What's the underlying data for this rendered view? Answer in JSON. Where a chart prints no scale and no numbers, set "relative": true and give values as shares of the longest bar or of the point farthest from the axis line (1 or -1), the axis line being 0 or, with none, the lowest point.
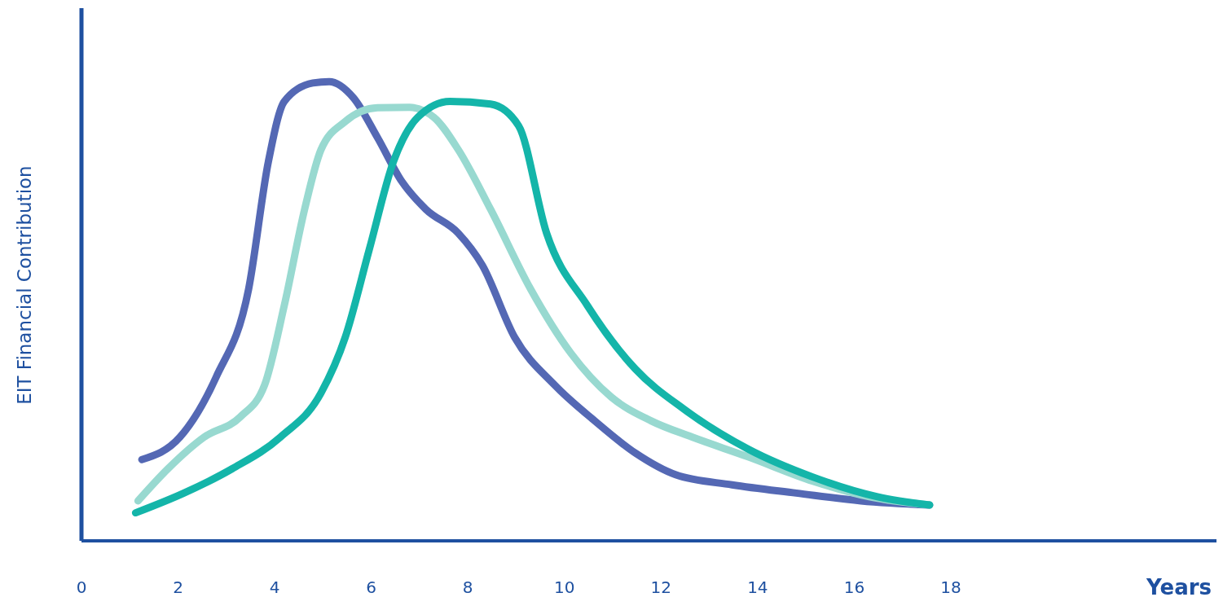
{
  "chart_data": {
    "type": "line",
    "relative": true,
    "xlabel": "Years",
    "ylabel": "EIT Financial Contribution",
    "xlim": [
      0,
      23.5
    ],
    "xticks": [
      0,
      2,
      4,
      6,
      8,
      10,
      12,
      14,
      16,
      18
    ],
    "grid": false,
    "legend": false,
    "marker": "none",
    "line_style": "solid",
    "series": [
      {
        "color": "#5468b4",
        "x": [
          1.25,
          2.04,
          2.79,
          3.46,
          3.87,
          4.2,
          4.79,
          5.13,
          5.63,
          6.13,
          6.63,
          7.13,
          7.8,
          8.3,
          8.97,
          9.8,
          10.63,
          11.47,
          12.3,
          13.47,
          14.8,
          16.14,
          17.56
        ],
        "values": [
          0.177,
          0.226,
          0.357,
          0.548,
          0.826,
          0.957,
          0.997,
          1.0,
          0.965,
          0.878,
          0.783,
          0.722,
          0.67,
          0.6,
          0.443,
          0.339,
          0.261,
          0.191,
          0.144,
          0.122,
          0.104,
          0.087,
          0.078
        ]
      },
      {
        "color": "#98d9d0",
        "x": [
          1.17,
          1.79,
          2.54,
          3.29,
          3.79,
          4.2,
          4.62,
          4.96,
          5.46,
          6.13,
          6.79,
          7.3,
          7.8,
          8.47,
          9.3,
          10.13,
          10.97,
          11.8,
          12.64,
          13.8,
          15.14,
          16.31,
          17.56
        ],
        "values": [
          0.087,
          0.157,
          0.226,
          0.27,
          0.339,
          0.513,
          0.722,
          0.852,
          0.913,
          0.943,
          0.944,
          0.922,
          0.852,
          0.722,
          0.548,
          0.409,
          0.313,
          0.261,
          0.226,
          0.183,
          0.13,
          0.096,
          0.078
        ]
      },
      {
        "color": "#14b5a9",
        "x": [
          1.12,
          2.12,
          3.12,
          4.12,
          4.96,
          5.46,
          5.96,
          6.46,
          6.96,
          7.63,
          8.47,
          9.05,
          9.63,
          10.47,
          11.47,
          12.47,
          13.8,
          15.14,
          16.48,
          17.56
        ],
        "values": [
          0.061,
          0.104,
          0.157,
          0.226,
          0.322,
          0.443,
          0.635,
          0.826,
          0.922,
          0.957,
          0.951,
          0.904,
          0.67,
          0.513,
          0.374,
          0.287,
          0.2,
          0.139,
          0.096,
          0.078
        ]
      }
    ]
  }
}
